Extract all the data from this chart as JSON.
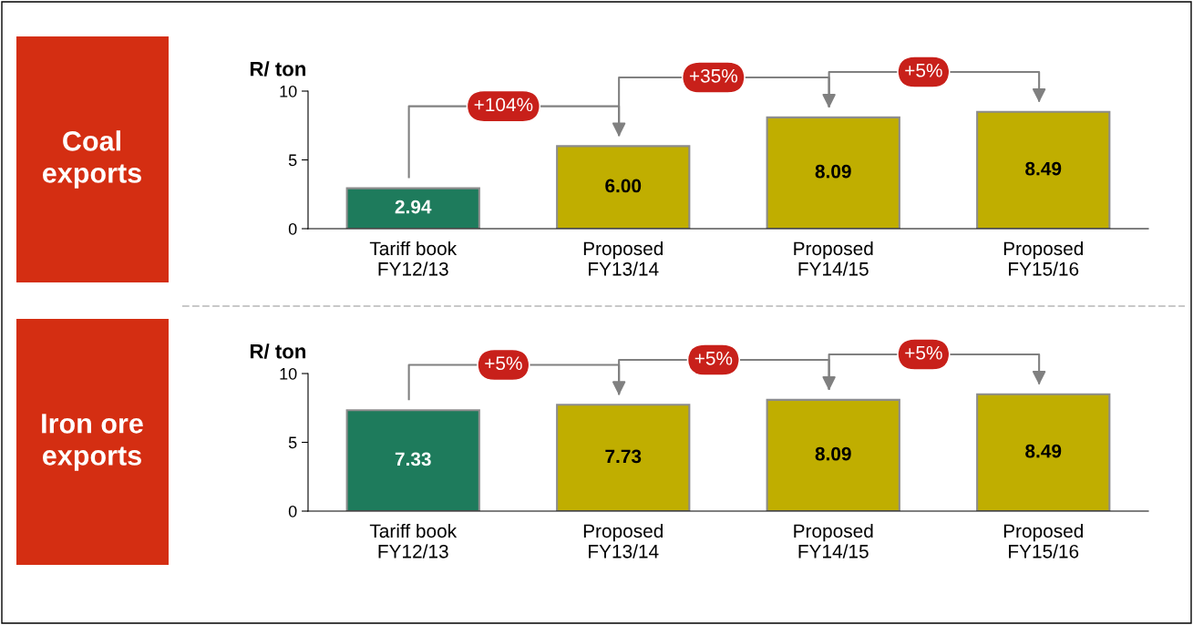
{
  "chart_data": [
    {
      "type": "bar",
      "title": "Coal\nexports",
      "ylabel": "R/ ton",
      "categories": [
        "Tariff book\nFY12/13",
        "Proposed\nFY13/14",
        "Proposed\nFY14/15",
        "Proposed\nFY15/16"
      ],
      "values": [
        2.94,
        6.0,
        8.09,
        8.49
      ],
      "value_labels": [
        "2.94",
        "6.00",
        "8.09",
        "8.49"
      ],
      "colors": [
        "#1e7b5c",
        "#c0ae00",
        "#c0ae00",
        "#c0ae00"
      ],
      "ylim": [
        0,
        10
      ],
      "yticks": [
        0,
        5,
        10
      ],
      "grid": false,
      "legend": false,
      "annotations": [
        "+104%",
        "+35%",
        "+5%"
      ]
    },
    {
      "type": "bar",
      "title": "Iron ore\nexports",
      "ylabel": "R/ ton",
      "categories": [
        "Tariff book\nFY12/13",
        "Proposed\nFY13/14",
        "Proposed\nFY14/15",
        "Proposed\nFY15/16"
      ],
      "values": [
        7.33,
        7.73,
        8.09,
        8.49
      ],
      "value_labels": [
        "7.33",
        "7.73",
        "8.09",
        "8.49"
      ],
      "colors": [
        "#1e7b5c",
        "#c0ae00",
        "#c0ae00",
        "#c0ae00"
      ],
      "ylim": [
        0,
        10
      ],
      "yticks": [
        0,
        5,
        10
      ],
      "grid": false,
      "legend": false,
      "annotations": [
        "+5%",
        "+5%",
        "+5%"
      ]
    }
  ]
}
